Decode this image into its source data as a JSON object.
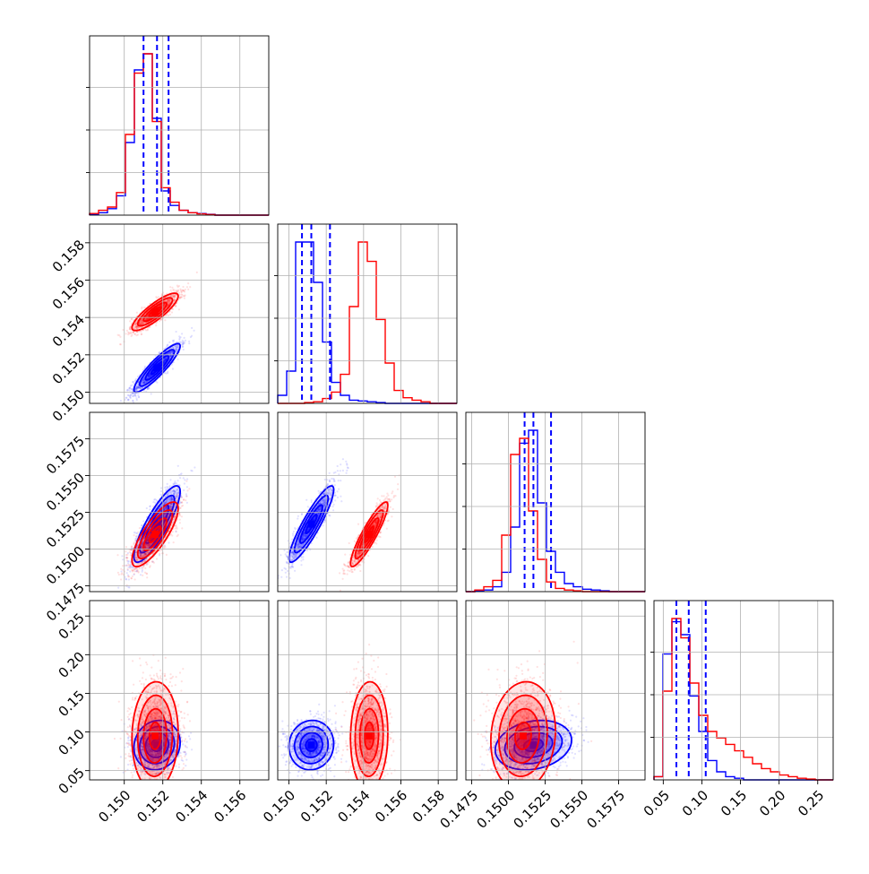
{
  "chart_data": {
    "type": "corner",
    "grid": true,
    "series_colors": {
      "blue": "#0000ff",
      "red": "#ff0000"
    },
    "parameters": [
      {
        "index": 0,
        "range": [
          0.1482,
          0.1575
        ],
        "ticks": [
          0.15,
          0.152,
          0.154,
          0.156
        ],
        "tick_labels": [
          "0.150",
          "0.152",
          "0.154",
          "0.156"
        ]
      },
      {
        "index": 1,
        "range": [
          0.1494,
          0.159
        ],
        "ticks": [
          0.15,
          0.152,
          0.154,
          0.156,
          0.158
        ],
        "tick_labels": [
          "0.150",
          "0.152",
          "0.154",
          "0.156",
          "0.158"
        ]
      },
      {
        "index": 2,
        "range": [
          0.1471,
          0.1593
        ],
        "ticks": [
          0.1475,
          0.15,
          0.1525,
          0.155,
          0.1575
        ],
        "tick_labels": [
          "0.1475",
          "0.1500",
          "0.1525",
          "0.1550",
          "0.1575"
        ]
      },
      {
        "index": 3,
        "range": [
          0.038,
          0.27
        ],
        "ticks": [
          0.05,
          0.1,
          0.15,
          0.2,
          0.25
        ],
        "tick_labels": [
          "0.05",
          "0.10",
          "0.15",
          "0.20",
          "0.25"
        ]
      }
    ],
    "histograms": [
      {
        "param": 0,
        "bin_range": [
          0.1482,
          0.1575
        ],
        "blue": [
          0.005,
          0.015,
          0.04,
          0.12,
          0.45,
          0.9,
          1.0,
          0.6,
          0.15,
          0.06,
          0.03,
          0.015,
          0.01,
          0.005,
          0,
          0,
          0,
          0,
          0,
          0
        ],
        "red": [
          0.01,
          0.03,
          0.05,
          0.14,
          0.5,
          0.88,
          1.0,
          0.58,
          0.17,
          0.08,
          0.03,
          0.015,
          0.008,
          0.004,
          0,
          0,
          0,
          0,
          0,
          0
        ],
        "blue_quantiles": [
          0.151,
          0.1517,
          0.1523
        ]
      },
      {
        "param": 1,
        "bin_range": [
          0.1494,
          0.159
        ],
        "blue": [
          0.05,
          0.2,
          1.0,
          1.0,
          0.75,
          0.38,
          0.13,
          0.05,
          0.02,
          0.015,
          0.01,
          0.005,
          0,
          0,
          0,
          0,
          0,
          0,
          0,
          0
        ],
        "red": [
          0,
          0,
          0,
          0.005,
          0.01,
          0.03,
          0.07,
          0.18,
          0.6,
          1.0,
          0.88,
          0.52,
          0.25,
          0.08,
          0.035,
          0.02,
          0.01,
          0,
          0,
          0
        ],
        "blue_quantiles": [
          0.1507,
          0.1512,
          0.1522
        ]
      },
      {
        "param": 2,
        "bin_range": [
          0.1471,
          0.1593
        ],
        "blue": [
          0,
          0.005,
          0.01,
          0.03,
          0.12,
          0.4,
          0.92,
          1.0,
          0.55,
          0.25,
          0.12,
          0.05,
          0.03,
          0.015,
          0.01,
          0.005,
          0,
          0,
          0,
          0
        ],
        "red": [
          0,
          0.01,
          0.03,
          0.07,
          0.35,
          0.85,
          0.95,
          0.5,
          0.2,
          0.06,
          0.02,
          0.01,
          0.005,
          0,
          0,
          0,
          0,
          0,
          0,
          0
        ],
        "blue_quantiles": [
          0.1511,
          0.1517,
          0.1529
        ]
      },
      {
        "param": 3,
        "bin_range": [
          0.038,
          0.27
        ],
        "blue": [
          0.02,
          0.78,
          0.98,
          0.9,
          0.52,
          0.3,
          0.12,
          0.05,
          0.02,
          0.01,
          0,
          0,
          0,
          0,
          0,
          0,
          0,
          0,
          0,
          0
        ],
        "red": [
          0.02,
          0.55,
          1.0,
          0.88,
          0.6,
          0.4,
          0.3,
          0.26,
          0.22,
          0.18,
          0.14,
          0.1,
          0.07,
          0.05,
          0.03,
          0.02,
          0.01,
          0.005,
          0,
          0
        ],
        "blue_quantiles": [
          0.067,
          0.083,
          0.105
        ]
      }
    ],
    "pairs": [
      {
        "row": 1,
        "col": 0,
        "blue": {
          "mean": [
            0.1517,
            0.1513
          ],
          "std": [
            0.0006,
            0.00065
          ],
          "rho": 0.9
        },
        "red": {
          "mean": [
            0.1516,
            0.1543
          ],
          "std": [
            0.0006,
            0.0005
          ],
          "rho": 0.85
        }
      },
      {
        "row": 2,
        "col": 0,
        "blue": {
          "mean": [
            0.1517,
            0.1517
          ],
          "std": [
            0.0006,
            0.0013
          ],
          "rho": 0.85
        },
        "red": {
          "mean": [
            0.1516,
            0.151
          ],
          "std": [
            0.0006,
            0.0011
          ],
          "rho": 0.8
        }
      },
      {
        "row": 2,
        "col": 1,
        "blue": {
          "mean": [
            0.1512,
            0.1517
          ],
          "std": [
            0.0006,
            0.0013
          ],
          "rho": 0.9
        },
        "red": {
          "mean": [
            0.1543,
            0.151
          ],
          "std": [
            0.0005,
            0.0011
          ],
          "rho": 0.9
        }
      },
      {
        "row": 3,
        "col": 0,
        "blue": {
          "mean": [
            0.1517,
            0.083
          ],
          "std": [
            0.0006,
            0.016
          ],
          "rho": 0.1
        },
        "red": {
          "mean": [
            0.1516,
            0.095
          ],
          "std": [
            0.0006,
            0.035
          ],
          "rho": 0.05
        }
      },
      {
        "row": 3,
        "col": 1,
        "blue": {
          "mean": [
            0.1512,
            0.083
          ],
          "std": [
            0.0006,
            0.016
          ],
          "rho": 0.05
        },
        "red": {
          "mean": [
            0.1543,
            0.095
          ],
          "std": [
            0.0005,
            0.035
          ],
          "rho": 0.05
        }
      },
      {
        "row": 3,
        "col": 2,
        "blue": {
          "mean": [
            0.1517,
            0.083
          ],
          "std": [
            0.0013,
            0.016
          ],
          "rho": 0.2
        },
        "red": {
          "mean": [
            0.151,
            0.095
          ],
          "std": [
            0.0011,
            0.035
          ],
          "rho": 0.1
        }
      }
    ]
  }
}
